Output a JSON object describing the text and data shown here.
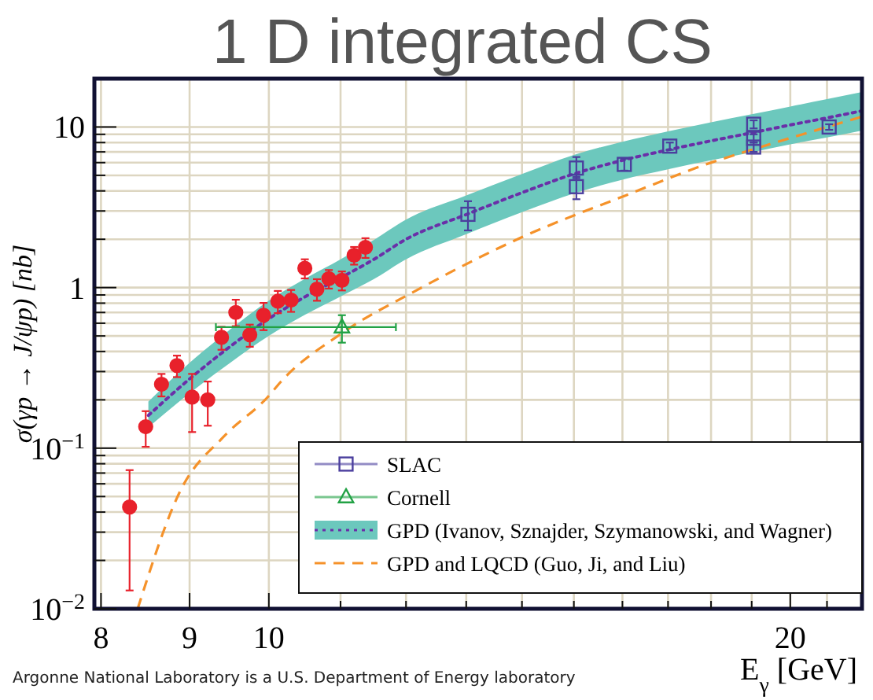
{
  "chart_data": {
    "type": "scatter",
    "title": "1 D integrated CS",
    "xlabel": "E$_{γ}$ [GeV]",
    "ylabel": "σ(γp → J/ψp) [nb]",
    "log": "xy",
    "grid": true,
    "legend": "bottom right",
    "xlim": [
      7.93,
      22
    ],
    "ylim": [
      0.01,
      20
    ],
    "xticks": [
      8,
      9,
      10,
      {
        "value": 11,
        "label": null
      },
      {
        "value": 12,
        "label": null
      },
      {
        "value": 13,
        "label": null
      },
      {
        "value": 14,
        "label": null
      },
      {
        "value": 15,
        "label": null
      },
      {
        "value": 16,
        "label": null
      },
      {
        "value": 17,
        "label": null
      },
      {
        "value": 18,
        "label": null
      },
      {
        "value": 19,
        "label": null
      },
      20,
      {
        "value": 21,
        "label": null
      }
    ],
    "yticks": [
      {
        "value": 0.01,
        "label": "10$^{−2}$"
      },
      {
        "value": 0.02,
        "label": null
      },
      {
        "value": 0.03,
        "label": null
      },
      {
        "value": 0.04,
        "label": null
      },
      {
        "value": 0.05,
        "label": null
      },
      {
        "value": 0.06,
        "label": null
      },
      {
        "value": 0.07,
        "label": null
      },
      {
        "value": 0.08,
        "label": null
      },
      {
        "value": 0.09,
        "label": null
      },
      {
        "value": 0.1,
        "label": "10$^{−1}$"
      },
      {
        "value": 0.2,
        "label": null
      },
      {
        "value": 0.3,
        "label": null
      },
      {
        "value": 0.4,
        "label": null
      },
      {
        "value": 0.5,
        "label": null
      },
      {
        "value": 0.6,
        "label": null
      },
      {
        "value": 0.7,
        "label": null
      },
      {
        "value": 0.8,
        "label": null
      },
      {
        "value": 0.9,
        "label": null
      },
      1,
      {
        "value": 2,
        "label": null
      },
      {
        "value": 3,
        "label": null
      },
      {
        "value": 4,
        "label": null
      },
      {
        "value": 5,
        "label": null
      },
      {
        "value": 6,
        "label": null
      },
      {
        "value": 7,
        "label": null
      },
      {
        "value": 8,
        "label": null
      },
      {
        "value": 9,
        "label": null
      },
      10
    ],
    "series": [
      {
        "color": "#e8212b",
        "marker": "circle",
        "x": [
          8.31,
          8.49,
          8.67,
          8.85,
          9.03,
          9.22,
          9.39,
          9.57,
          9.75,
          9.93,
          10.12,
          10.3,
          10.49,
          10.66,
          10.83,
          11.02,
          11.2,
          11.37
        ],
        "values": [
          0.043,
          0.136,
          0.25,
          0.327,
          0.208,
          0.2,
          0.49,
          0.7,
          0.508,
          0.673,
          0.823,
          0.836,
          1.32,
          0.978,
          1.136,
          1.11,
          1.59,
          1.78
        ],
        "errors": [
          [
            0.013,
            0.073
          ],
          [
            0.102,
            0.17
          ],
          0.04,
          0.05,
          [
            0.126,
            0.29
          ],
          [
            0.138,
            0.26
          ],
          0.08,
          [
            0.575,
            0.84
          ],
          0.08,
          0.13,
          0.13,
          0.13,
          0.18,
          0.15,
          0.15,
          0.15,
          0.2,
          0.25
        ],
        "xerrors": [
          0.04,
          0.04,
          0.04,
          0.04,
          0.04,
          0.04,
          0.04,
          0.04,
          0.04,
          0.04,
          0.04,
          0.04,
          0.04,
          0.04,
          0.04,
          0.04,
          0.04,
          0.04
        ]
      },
      {
        "name": "SLAC",
        "color": "#4b3f9e",
        "marker": "square",
        "x": [
          13.03,
          15.05,
          15.05,
          16.04,
          17.04,
          19.05,
          19.05,
          19.05,
          21.06
        ],
        "values": [
          2.86,
          5.55,
          4.25,
          5.85,
          7.6,
          10.4,
          8.5,
          7.5,
          10.0
        ],
        "errors": [
          [
            2.27,
            3.45
          ],
          [
            4.8,
            6.5
          ],
          [
            3.55,
            4.9
          ],
          0.5,
          0.4,
          0.6,
          0.5,
          0.5,
          0.4
        ]
      },
      {
        "name": "Cornell",
        "color": "#22a245",
        "marker": "triangle",
        "x": [
          11.02
        ],
        "values": [
          0.567
        ],
        "errors": [
          [
            0.454,
            0.673
          ]
        ],
        "xerrors": [
          [
            9.32,
            11.84
          ]
        ]
      },
      {
        "type": "line",
        "name": "GPD (Ivanov, Sznajder, Szymanowski, and Wagner)",
        "color": "#6a2fa8",
        "line_style": "dotted",
        "x": [
          8.52,
          9,
          9.5,
          10,
          10.5,
          11,
          11.5,
          12,
          13,
          14,
          15,
          16,
          17,
          18,
          19,
          20,
          21,
          22
        ],
        "values": [
          0.16,
          0.27,
          0.43,
          0.64,
          0.88,
          1.15,
          1.5,
          2.0,
          2.85,
          3.9,
          5.1,
          6.2,
          7.2,
          8.2,
          9.2,
          10.3,
          11.4,
          12.6
        ],
        "lower": [
          0.135,
          0.22,
          0.34,
          0.5,
          0.68,
          0.88,
          1.13,
          1.5,
          2.15,
          2.95,
          3.85,
          4.7,
          5.45,
          6.2,
          6.95,
          7.8,
          8.6,
          9.5
        ],
        "upper": [
          0.195,
          0.34,
          0.55,
          0.83,
          1.14,
          1.5,
          1.98,
          2.65,
          3.75,
          5.1,
          6.7,
          8.1,
          9.4,
          10.7,
          12.0,
          13.4,
          14.9,
          16.5
        ]
      },
      {
        "type": "line",
        "name": "GPD and LQCD (Guo, Ji, and Liu)",
        "color": "#f5922a",
        "line_style": "dashed",
        "x": [
          8.4,
          8.9,
          9.41,
          10,
          10.15,
          11.02,
          12.21,
          14,
          16.06,
          18.05,
          19.07,
          22
        ],
        "values": [
          0.01,
          0.0556,
          0.117,
          0.212,
          0.256,
          0.52,
          0.98,
          2.06,
          3.74,
          6.06,
          7.3,
          11.6
        ]
      }
    ],
    "annotations": [
      "Argonne National Laboratory is a U.S. Department of Energy laboratory"
    ]
  }
}
